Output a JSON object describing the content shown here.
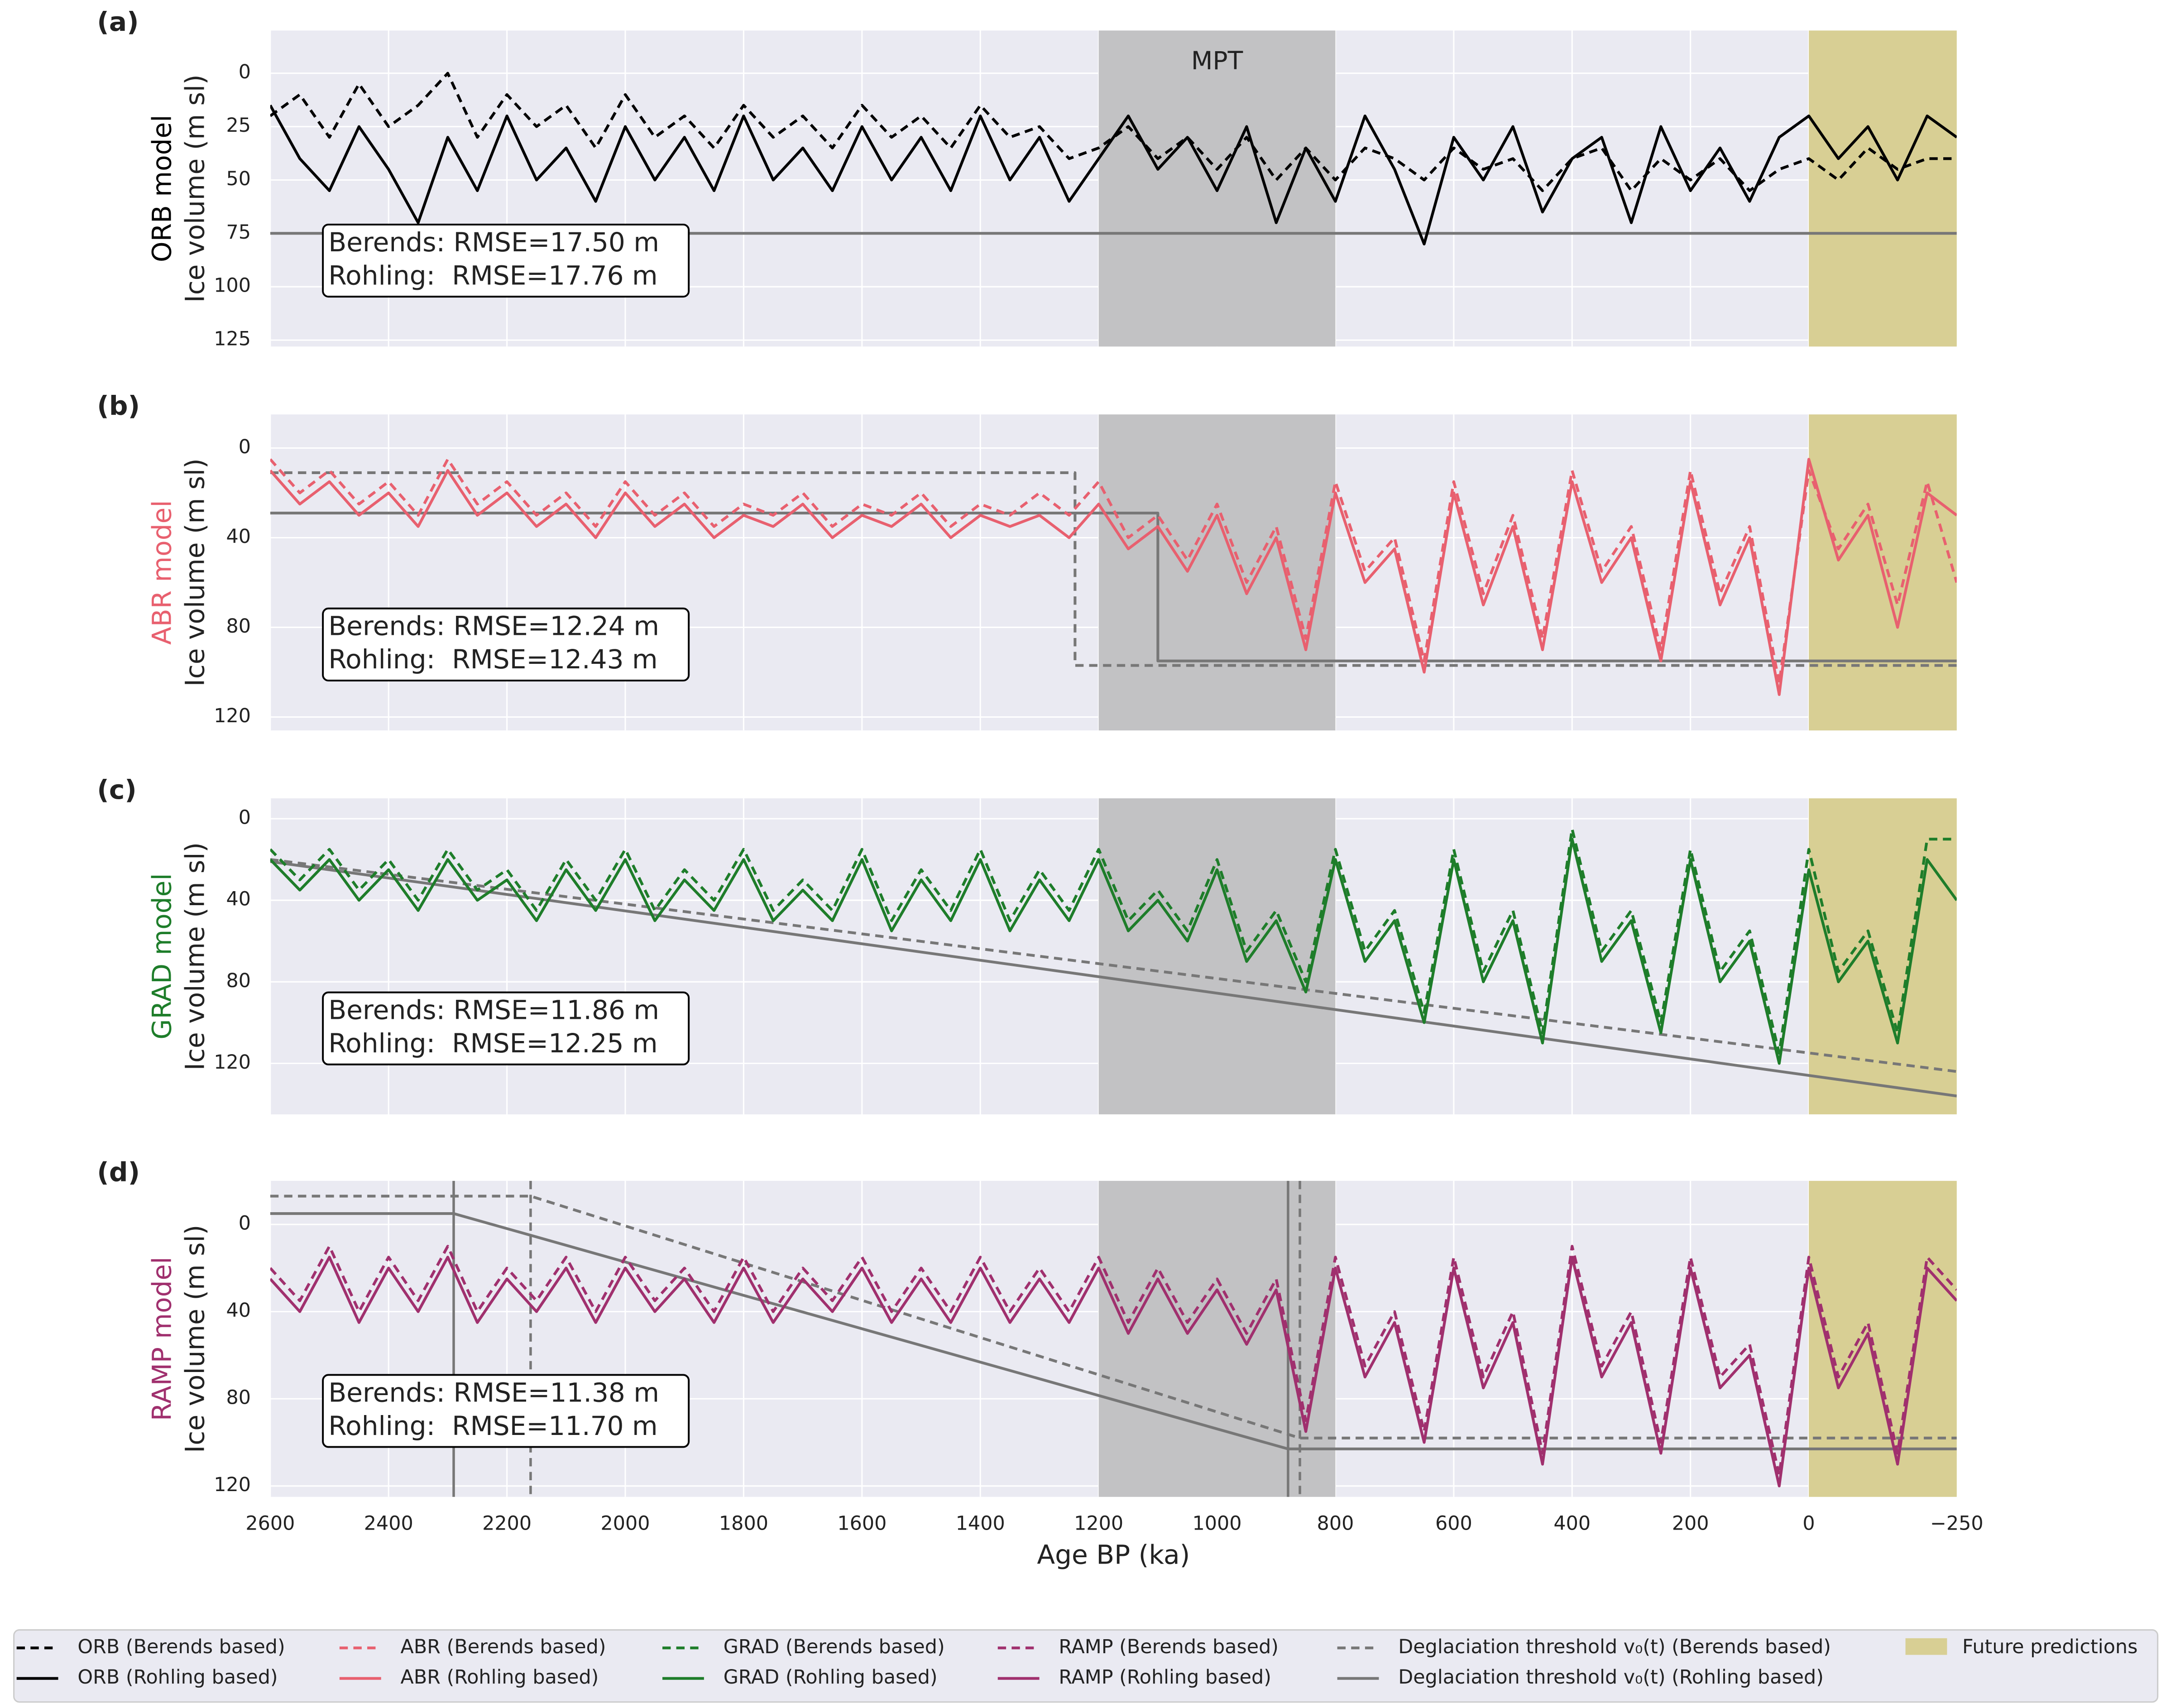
{
  "chart_data": [
    {
      "type": "line",
      "panel": "(a)",
      "ylabel_model": "ORB model",
      "model_color": "#000000",
      "ylabel": "Ice volume (m sl)",
      "ylim": [
        128,
        -20
      ],
      "yticks": [
        0,
        25,
        50,
        75,
        100,
        125
      ],
      "annotations": [
        "Berends: RMSE=17.50 m",
        "Rohling:  RMSE=17.76 m"
      ],
      "x": [
        2600,
        2550,
        2500,
        2450,
        2400,
        2350,
        2300,
        2250,
        2200,
        2150,
        2100,
        2050,
        2000,
        1950,
        1900,
        1850,
        1800,
        1750,
        1700,
        1650,
        1600,
        1550,
        1500,
        1450,
        1400,
        1350,
        1300,
        1250,
        1200,
        1150,
        1100,
        1050,
        1000,
        950,
        900,
        850,
        800,
        750,
        700,
        650,
        600,
        550,
        500,
        450,
        400,
        350,
        300,
        250,
        200,
        150,
        100,
        50,
        0,
        -50,
        -100,
        -150,
        -200,
        -250
      ],
      "series": [
        {
          "name": "ORB (Berends based)",
          "color": "#000000",
          "dash": true,
          "values": [
            20,
            10,
            30,
            5,
            25,
            15,
            0,
            30,
            10,
            25,
            15,
            35,
            10,
            30,
            20,
            35,
            15,
            30,
            20,
            35,
            15,
            30,
            20,
            35,
            15,
            30,
            25,
            40,
            35,
            25,
            40,
            30,
            45,
            30,
            50,
            35,
            50,
            35,
            40,
            50,
            35,
            45,
            40,
            55,
            40,
            35,
            55,
            40,
            50,
            40,
            55,
            45,
            40,
            50,
            35,
            45,
            40,
            40
          ]
        },
        {
          "name": "ORB (Rohling based)",
          "color": "#000000",
          "dash": false,
          "values": [
            15,
            40,
            55,
            25,
            45,
            70,
            30,
            55,
            20,
            50,
            35,
            60,
            25,
            50,
            30,
            55,
            20,
            50,
            35,
            55,
            25,
            50,
            30,
            55,
            20,
            50,
            30,
            60,
            40,
            20,
            45,
            30,
            55,
            25,
            70,
            35,
            60,
            20,
            45,
            80,
            30,
            50,
            25,
            65,
            40,
            30,
            70,
            25,
            55,
            35,
            60,
            30,
            20,
            40,
            25,
            50,
            20,
            30
          ]
        },
        {
          "name": "Deglaciation threshold v₀(t) (Rohling based)",
          "color": "#777777",
          "dash": false,
          "x": [
            2600,
            -250
          ],
          "values": [
            75,
            75
          ]
        }
      ]
    },
    {
      "type": "line",
      "panel": "(b)",
      "ylabel_model": "ABR model",
      "model_color": "#e8606f",
      "ylabel": "Ice volume (m sl)",
      "ylim": [
        126,
        -15
      ],
      "yticks": [
        0,
        40,
        80,
        120
      ],
      "annotations": [
        "Berends: RMSE=12.24 m",
        "Rohling:  RMSE=12.43 m"
      ],
      "x": [
        2600,
        2550,
        2500,
        2450,
        2400,
        2350,
        2300,
        2250,
        2200,
        2150,
        2100,
        2050,
        2000,
        1950,
        1900,
        1850,
        1800,
        1750,
        1700,
        1650,
        1600,
        1550,
        1500,
        1450,
        1400,
        1350,
        1300,
        1250,
        1200,
        1150,
        1100,
        1050,
        1000,
        950,
        900,
        850,
        800,
        750,
        700,
        650,
        600,
        550,
        500,
        450,
        400,
        350,
        300,
        250,
        200,
        150,
        100,
        50,
        0,
        -50,
        -100,
        -150,
        -200,
        -250
      ],
      "series": [
        {
          "name": "ABR (Berends based)",
          "color": "#e8606f",
          "dash": true,
          "values": [
            5,
            20,
            10,
            25,
            15,
            30,
            5,
            25,
            15,
            30,
            20,
            35,
            15,
            30,
            20,
            35,
            25,
            30,
            20,
            35,
            25,
            30,
            20,
            35,
            25,
            30,
            20,
            30,
            15,
            40,
            30,
            50,
            25,
            60,
            35,
            85,
            15,
            55,
            40,
            95,
            15,
            65,
            30,
            85,
            10,
            55,
            35,
            90,
            10,
            65,
            35,
            105,
            10,
            45,
            25,
            70,
            15,
            60
          ]
        },
        {
          "name": "ABR (Rohling based)",
          "color": "#e8606f",
          "dash": false,
          "values": [
            10,
            25,
            15,
            30,
            20,
            35,
            10,
            30,
            20,
            35,
            25,
            40,
            20,
            35,
            25,
            40,
            30,
            35,
            25,
            40,
            30,
            35,
            25,
            40,
            30,
            35,
            30,
            40,
            25,
            45,
            35,
            55,
            30,
            65,
            40,
            90,
            20,
            60,
            45,
            100,
            20,
            70,
            35,
            90,
            15,
            60,
            40,
            95,
            15,
            70,
            40,
            110,
            5,
            50,
            30,
            80,
            20,
            30
          ]
        },
        {
          "name": "Deglaciation threshold v₀(t) (Berends based)",
          "color": "#777777",
          "dash": true,
          "x": [
            2600,
            1240,
            1240,
            -250
          ],
          "values": [
            11,
            11,
            97,
            97
          ]
        },
        {
          "name": "Deglaciation threshold v₀(t) (Rohling based)",
          "color": "#777777",
          "dash": false,
          "x": [
            2600,
            1100,
            1100,
            -250
          ],
          "values": [
            29,
            29,
            95,
            95
          ]
        }
      ]
    },
    {
      "type": "line",
      "panel": "(c)",
      "ylabel_model": "GRAD model",
      "model_color": "#1e7d2a",
      "ylabel": "Ice volume (m sl)",
      "ylim": [
        145,
        -10
      ],
      "yticks": [
        0,
        40,
        80,
        120
      ],
      "annotations": [
        "Berends: RMSE=11.86 m",
        "Rohling:  RMSE=12.25 m"
      ],
      "x": [
        2600,
        2550,
        2500,
        2450,
        2400,
        2350,
        2300,
        2250,
        2200,
        2150,
        2100,
        2050,
        2000,
        1950,
        1900,
        1850,
        1800,
        1750,
        1700,
        1650,
        1600,
        1550,
        1500,
        1450,
        1400,
        1350,
        1300,
        1250,
        1200,
        1150,
        1100,
        1050,
        1000,
        950,
        900,
        850,
        800,
        750,
        700,
        650,
        600,
        550,
        500,
        450,
        400,
        350,
        300,
        250,
        200,
        150,
        100,
        50,
        0,
        -50,
        -100,
        -150,
        -200,
        -250
      ],
      "series": [
        {
          "name": "GRAD (Berends based)",
          "color": "#1e7d2a",
          "dash": true,
          "values": [
            15,
            30,
            15,
            35,
            20,
            40,
            15,
            35,
            25,
            45,
            20,
            40,
            15,
            45,
            25,
            40,
            15,
            45,
            30,
            45,
            15,
            50,
            25,
            45,
            15,
            50,
            25,
            45,
            15,
            50,
            35,
            55,
            20,
            65,
            45,
            80,
            15,
            65,
            45,
            95,
            15,
            75,
            45,
            105,
            5,
            65,
            45,
            100,
            15,
            75,
            55,
            115,
            15,
            75,
            55,
            105,
            10,
            10
          ]
        },
        {
          "name": "GRAD (Rohling based)",
          "color": "#1e7d2a",
          "dash": false,
          "values": [
            20,
            35,
            20,
            40,
            25,
            45,
            20,
            40,
            30,
            50,
            25,
            45,
            20,
            50,
            30,
            45,
            20,
            50,
            35,
            50,
            20,
            55,
            30,
            50,
            20,
            55,
            30,
            50,
            20,
            55,
            40,
            60,
            25,
            70,
            50,
            85,
            20,
            70,
            50,
            100,
            20,
            80,
            50,
            110,
            10,
            70,
            50,
            105,
            20,
            80,
            60,
            120,
            25,
            80,
            60,
            110,
            20,
            40
          ]
        },
        {
          "name": "Deglaciation threshold v₀(t) (Berends based)",
          "color": "#777777",
          "dash": true,
          "x": [
            2600,
            -250
          ],
          "values": [
            20,
            124
          ]
        },
        {
          "name": "Deglaciation threshold v₀(t) (Rohling based)",
          "color": "#777777",
          "dash": false,
          "x": [
            2600,
            -250
          ],
          "values": [
            21,
            136
          ]
        }
      ]
    },
    {
      "type": "line",
      "panel": "(d)",
      "ylabel_model": "RAMP model",
      "model_color": "#a0306e",
      "ylabel": "Ice volume (m sl)",
      "xlabel": "Age BP (ka)",
      "xlim": [
        2600,
        -250
      ],
      "xticks": [
        2600,
        2400,
        2200,
        2000,
        1800,
        1600,
        1400,
        1200,
        1000,
        800,
        600,
        400,
        200,
        0,
        {
          "value": -250,
          "label": "−250"
        }
      ],
      "ylim": [
        125,
        -20
      ],
      "yticks": [
        0,
        40,
        80,
        120
      ],
      "annotations": [
        "Berends: RMSE=11.38 m",
        "Rohling:  RMSE=11.70 m"
      ],
      "x": [
        2600,
        2550,
        2500,
        2450,
        2400,
        2350,
        2300,
        2250,
        2200,
        2150,
        2100,
        2050,
        2000,
        1950,
        1900,
        1850,
        1800,
        1750,
        1700,
        1650,
        1600,
        1550,
        1500,
        1450,
        1400,
        1350,
        1300,
        1250,
        1200,
        1150,
        1100,
        1050,
        1000,
        950,
        900,
        850,
        800,
        750,
        700,
        650,
        600,
        550,
        500,
        450,
        400,
        350,
        300,
        250,
        200,
        150,
        100,
        50,
        0,
        -50,
        -100,
        -150,
        -200,
        -250
      ],
      "series": [
        {
          "name": "RAMP (Berends based)",
          "color": "#a0306e",
          "dash": true,
          "values": [
            20,
            35,
            10,
            40,
            15,
            35,
            10,
            40,
            20,
            35,
            15,
            40,
            15,
            35,
            20,
            40,
            15,
            40,
            20,
            35,
            15,
            40,
            20,
            40,
            15,
            40,
            20,
            40,
            15,
            45,
            20,
            45,
            25,
            50,
            25,
            90,
            15,
            65,
            40,
            95,
            15,
            70,
            40,
            105,
            10,
            65,
            40,
            100,
            15,
            70,
            55,
            115,
            15,
            70,
            45,
            105,
            15,
            30
          ]
        },
        {
          "name": "RAMP (Rohling based)",
          "color": "#a0306e",
          "dash": false,
          "values": [
            25,
            40,
            15,
            45,
            20,
            40,
            15,
            45,
            25,
            40,
            20,
            45,
            20,
            40,
            25,
            45,
            20,
            45,
            25,
            40,
            20,
            45,
            25,
            45,
            20,
            45,
            25,
            45,
            20,
            50,
            25,
            50,
            30,
            55,
            30,
            95,
            20,
            70,
            45,
            100,
            20,
            75,
            45,
            110,
            15,
            70,
            45,
            105,
            20,
            75,
            60,
            120,
            20,
            75,
            50,
            110,
            20,
            35
          ]
        },
        {
          "name": "Deglaciation threshold v₀(t) (Berends based)",
          "color": "#777777",
          "dash": true,
          "x": [
            2600,
            2160,
            860,
            -250
          ],
          "values": [
            -13,
            -13,
            98,
            98
          ]
        },
        {
          "name": "Deglaciation threshold v₀(t) (Rohling based)",
          "color": "#777777",
          "dash": false,
          "x": [
            2600,
            2290,
            880,
            -250
          ],
          "values": [
            -5,
            -5,
            103,
            103
          ]
        }
      ],
      "vlines": [
        {
          "x": 2160,
          "dash": true
        },
        {
          "x": 860,
          "dash": true
        },
        {
          "x": 2290,
          "dash": false
        },
        {
          "x": 880,
          "dash": false
        }
      ]
    }
  ],
  "regions": [
    {
      "label": "MPT",
      "start": 1200,
      "end": 800,
      "color": "#c2c2c4"
    },
    {
      "label": "Future predictions",
      "start": 0,
      "end": -250,
      "color": "#d8cf94"
    }
  ]
}
